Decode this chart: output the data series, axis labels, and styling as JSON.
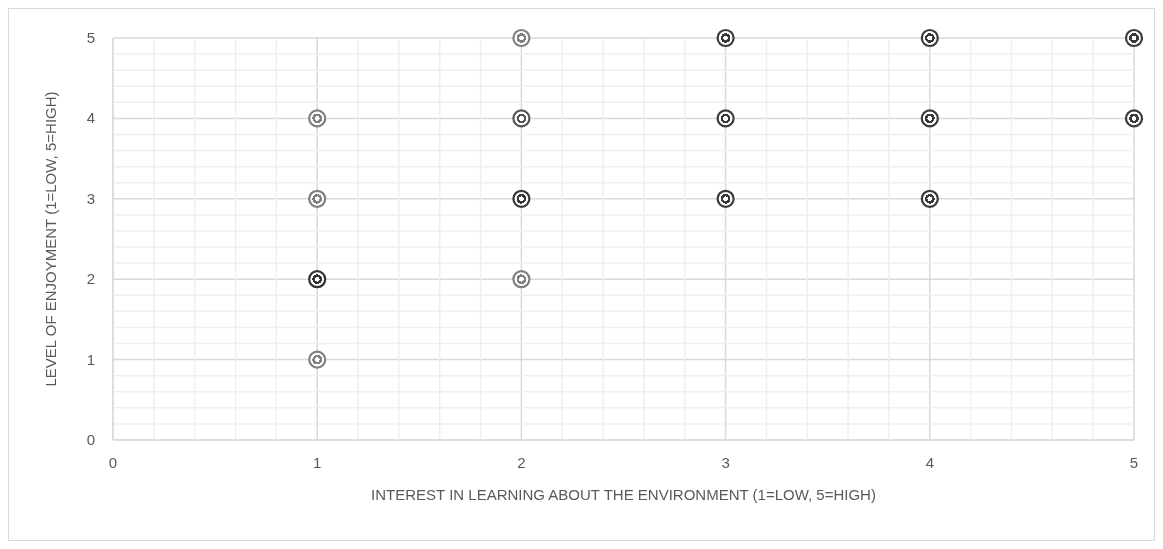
{
  "chart_data": {
    "type": "scatter",
    "xlabel": "INTEREST IN LEARNING ABOUT THE ENVIRONMENT (1=LOW, 5=HIGH)",
    "ylabel": "LEVEL OF ENJOYMENT (1=LOW, 5=HIGH)",
    "x": [
      1,
      1,
      1,
      1,
      2,
      2,
      2,
      2,
      3,
      3,
      3,
      4,
      4,
      4,
      5,
      5
    ],
    "values": [
      1,
      2,
      3,
      4,
      2,
      3,
      4,
      5,
      3,
      4,
      5,
      3,
      4,
      5,
      4,
      5
    ],
    "colors": [
      "#808080",
      "#333333",
      "#808080",
      "#808080",
      "#808080",
      "#3a3a3a",
      "#555555",
      "#808080",
      "#3a3a3a",
      "#3a3a3a",
      "#3a3a3a",
      "#3a3a3a",
      "#3a3a3a",
      "#3a3a3a",
      "#3a3a3a",
      "#3a3a3a"
    ],
    "marker": "circle",
    "grid": true,
    "xlim": [
      0,
      5
    ],
    "ylim": [
      0,
      5
    ],
    "xticks": [
      0,
      {
        "value": 0.2,
        "label": null
      },
      {
        "value": 0.4,
        "label": null
      },
      {
        "value": 0.6,
        "label": null
      },
      {
        "value": 0.8,
        "label": null
      },
      1,
      {
        "value": 1.2,
        "label": null
      },
      {
        "value": 1.4,
        "label": null
      },
      {
        "value": 1.6,
        "label": null
      },
      {
        "value": 1.8,
        "label": null
      },
      2,
      {
        "value": 2.2,
        "label": null
      },
      {
        "value": 2.4,
        "label": null
      },
      {
        "value": 2.6,
        "label": null
      },
      {
        "value": 2.8,
        "label": null
      },
      3,
      {
        "value": 3.2,
        "label": null
      },
      {
        "value": 3.4,
        "label": null
      },
      {
        "value": 3.6,
        "label": null
      },
      {
        "value": 3.8,
        "label": null
      },
      4,
      {
        "value": 4.2,
        "label": null
      },
      {
        "value": 4.4,
        "label": null
      },
      {
        "value": 4.6,
        "label": null
      },
      {
        "value": 4.8,
        "label": null
      },
      5
    ],
    "yticks": [
      0,
      {
        "value": 0.2,
        "label": null
      },
      {
        "value": 0.4,
        "label": null
      },
      {
        "value": 0.6,
        "label": null
      },
      {
        "value": 0.8,
        "label": null
      },
      1,
      {
        "value": 1.2,
        "label": null
      },
      {
        "value": 1.4,
        "label": null
      },
      {
        "value": 1.6,
        "label": null
      },
      {
        "value": 1.8,
        "label": null
      },
      2,
      {
        "value": 2.2,
        "label": null
      },
      {
        "value": 2.4,
        "label": null
      },
      {
        "value": 2.6,
        "label": null
      },
      {
        "value": 2.8,
        "label": null
      },
      3,
      {
        "value": 3.2,
        "label": null
      },
      {
        "value": 3.4,
        "label": null
      },
      {
        "value": 3.6,
        "label": null
      },
      {
        "value": 3.8,
        "label": null
      },
      4,
      {
        "value": 4.2,
        "label": null
      },
      {
        "value": 4.4,
        "label": null
      },
      {
        "value": 4.6,
        "label": null
      },
      {
        "value": 4.8,
        "label": null
      },
      5
    ]
  }
}
